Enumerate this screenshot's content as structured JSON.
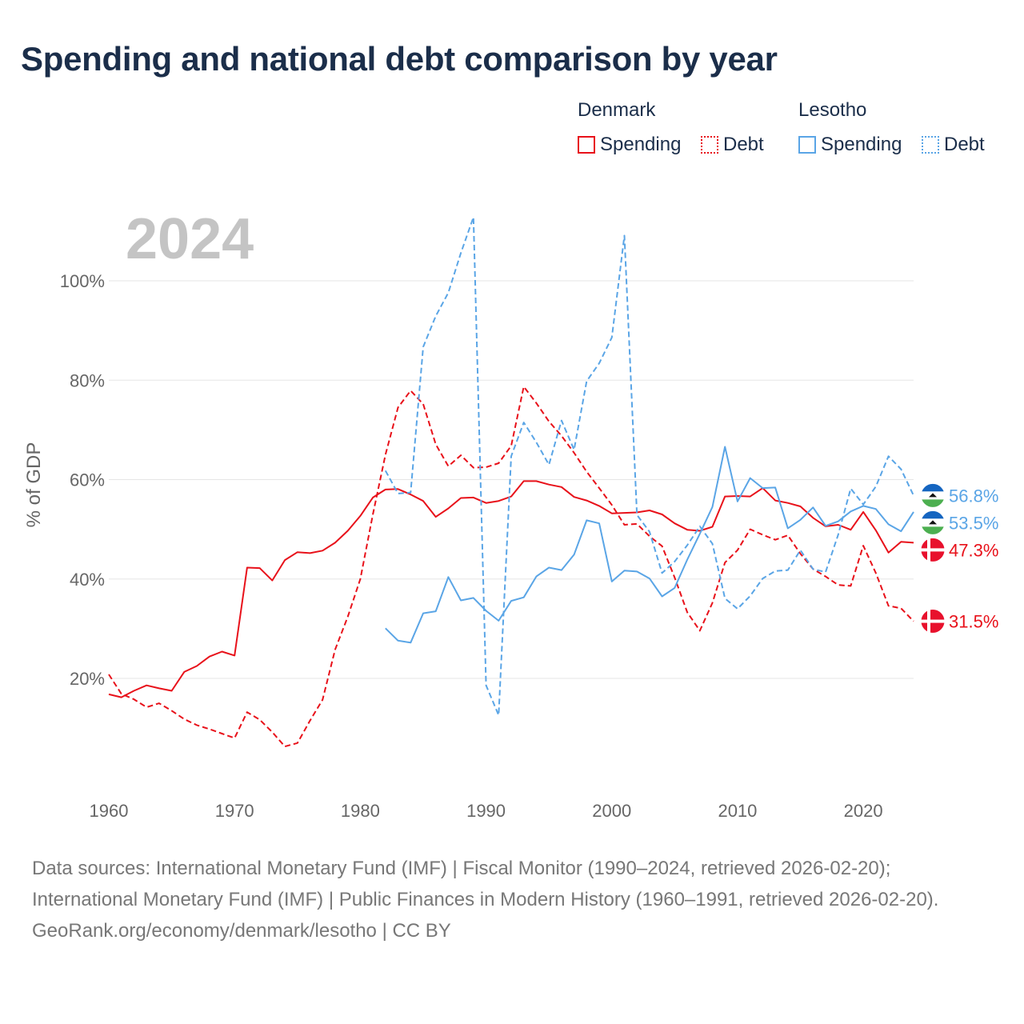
{
  "title": "Spending and national debt comparison by year",
  "legend": {
    "groups": [
      {
        "country": "Denmark",
        "color": "#e8111a",
        "spending_label": "Spending",
        "debt_label": "Debt"
      },
      {
        "country": "Lesotho",
        "color": "#5aa5e6",
        "spending_label": "Spending",
        "debt_label": "Debt"
      }
    ]
  },
  "footer": {
    "sources": "Data sources: International Monetary Fund (IMF) | Fiscal Monitor (1990–2024, retrieved 2026-02-20); International Monetary Fund (IMF) | Public Finances in Modern History (1960–1991, retrieved 2026-02-20).",
    "credit": "GeoRank.org/economy/denmark/lesotho | CC BY"
  },
  "chart_data": {
    "type": "line",
    "year_label": "2024",
    "ylabel": "% of GDP",
    "xlim": [
      1960,
      2024
    ],
    "ylim": [
      0,
      112
    ],
    "x_ticks": [
      1960,
      1970,
      1980,
      1990,
      2000,
      2010,
      2020
    ],
    "y_ticks": [
      {
        "value": 20,
        "label": "20%"
      },
      {
        "value": 40,
        "label": "40%"
      },
      {
        "value": 60,
        "label": "60%"
      },
      {
        "value": 80,
        "label": "80%"
      },
      {
        "value": 100,
        "label": "100%"
      }
    ],
    "series": [
      {
        "name": "Denmark Spending",
        "country": "Denmark",
        "kind": "spending",
        "color": "#e8111a",
        "dashed": false,
        "flag": "denmark-flag-icon",
        "end_label": "47.3%",
        "end_value": 47.3,
        "start_year": 1960,
        "values": [
          16.8,
          16.2,
          17.5,
          18.6,
          18.0,
          17.5,
          21.3,
          22.5,
          24.4,
          25.4,
          24.6,
          42.3,
          42.2,
          39.7,
          43.8,
          45.4,
          45.2,
          45.7,
          47.3,
          49.7,
          52.7,
          56.4,
          58.0,
          58.1,
          57.0,
          55.7,
          52.5,
          54.2,
          56.3,
          56.4,
          55.3,
          55.7,
          56.6,
          59.7,
          59.7,
          59.0,
          58.5,
          56.5,
          55.8,
          54.7,
          53.2,
          53.3,
          53.4,
          53.8,
          53.0,
          51.2,
          49.9,
          49.7,
          50.5,
          56.6,
          56.7,
          56.6,
          58.3,
          55.8,
          55.3,
          54.6,
          52.3,
          50.6,
          50.9,
          49.9,
          53.5,
          49.8,
          45.3,
          47.5,
          47.3
        ]
      },
      {
        "name": "Denmark Debt",
        "country": "Denmark",
        "kind": "debt",
        "color": "#e8111a",
        "dashed": true,
        "flag": "denmark-flag-icon",
        "end_label": "31.5%",
        "end_value": 31.5,
        "start_year": 1960,
        "values": [
          20.8,
          16.9,
          15.8,
          14.2,
          15.0,
          13.5,
          11.8,
          10.6,
          9.8,
          8.9,
          8.0,
          13.2,
          11.7,
          9.2,
          6.3,
          7.0,
          11.5,
          15.7,
          25.8,
          32.4,
          40.0,
          53.0,
          65.0,
          74.5,
          77.9,
          75.2,
          67.1,
          62.7,
          64.9,
          62.4,
          62.5,
          63.3,
          66.8,
          78.7,
          75.4,
          71.7,
          68.8,
          65.4,
          61.6,
          58.3,
          54.9,
          50.9,
          51.1,
          48.6,
          46.6,
          40.3,
          33.3,
          29.6,
          35.2,
          43.3,
          45.8,
          50.0,
          48.9,
          47.9,
          48.8,
          45.1,
          42.0,
          40.5,
          38.8,
          38.6,
          46.7,
          41.2,
          34.6,
          34.1,
          31.5
        ]
      },
      {
        "name": "Lesotho Spending",
        "country": "Lesotho",
        "kind": "spending",
        "color": "#5aa5e6",
        "dashed": false,
        "flag": "lesotho-flag-icon",
        "end_label": "53.5%",
        "end_value": 53.5,
        "start_year": 1982,
        "values": [
          30.1,
          27.6,
          27.2,
          33.1,
          33.5,
          40.4,
          35.7,
          36.2,
          33.6,
          31.6,
          35.6,
          36.3,
          40.5,
          42.3,
          41.8,
          44.9,
          51.8,
          51.2,
          39.5,
          41.7,
          41.5,
          40.1,
          36.5,
          38.2,
          43.9,
          49.1,
          54.5,
          66.6,
          55.6,
          60.3,
          58.3,
          58.4,
          50.2,
          51.9,
          54.4,
          50.7,
          51.6,
          53.6,
          54.7,
          54.1,
          51.0,
          49.6,
          53.5
        ]
      },
      {
        "name": "Lesotho Debt",
        "country": "Lesotho",
        "kind": "debt",
        "color": "#5aa5e6",
        "dashed": true,
        "flag": "lesotho-flag-icon",
        "end_label": "56.8%",
        "end_value": 56.8,
        "start_year": 1982,
        "values": [
          61.8,
          57.2,
          57.4,
          86.7,
          92.9,
          97.6,
          105.6,
          112.8,
          18.6,
          12.6,
          64.7,
          71.5,
          67.5,
          63.0,
          71.9,
          66.0,
          79.8,
          83.4,
          88.6,
          109.1,
          52.9,
          49.5,
          41.2,
          43.5,
          46.8,
          50.6,
          47.1,
          36.1,
          34.0,
          36.6,
          40.1,
          41.6,
          41.8,
          45.8,
          42.0,
          41.4,
          48.9,
          58.2,
          55.0,
          58.6,
          64.7,
          62.1,
          56.8
        ]
      }
    ]
  }
}
